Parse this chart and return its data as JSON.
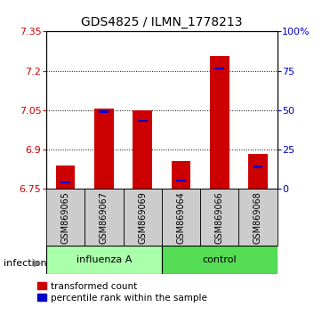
{
  "title": "GDS4825 / ILMN_1778213",
  "samples": [
    "GSM869065",
    "GSM869067",
    "GSM869069",
    "GSM869064",
    "GSM869066",
    "GSM869068"
  ],
  "baseline": 6.75,
  "red_tops": [
    6.84,
    7.055,
    7.05,
    6.855,
    7.255,
    6.885
  ],
  "blue_tops": [
    6.775,
    7.045,
    7.01,
    6.782,
    7.21,
    6.835
  ],
  "blue_heights": [
    0.008,
    0.008,
    0.008,
    0.008,
    0.008,
    0.008
  ],
  "ylim_min": 6.75,
  "ylim_max": 7.35,
  "yticks_left": [
    6.75,
    6.9,
    7.05,
    7.2,
    7.35
  ],
  "yticks_right": [
    0,
    25,
    50,
    75,
    100
  ],
  "bar_width": 0.5,
  "blue_bar_width": 0.25,
  "red_color": "#cc0000",
  "blue_color": "#0000cc",
  "group1_label": "influenza A",
  "group2_label": "control",
  "group1_color": "#aaffaa",
  "group2_color": "#55dd55",
  "infection_label": "infection",
  "legend1": "transformed count",
  "legend2": "percentile rank within the sample",
  "left_tick_color": "#cc0000",
  "right_tick_color": "#0000cc",
  "bar_bg_color": "#cccccc"
}
